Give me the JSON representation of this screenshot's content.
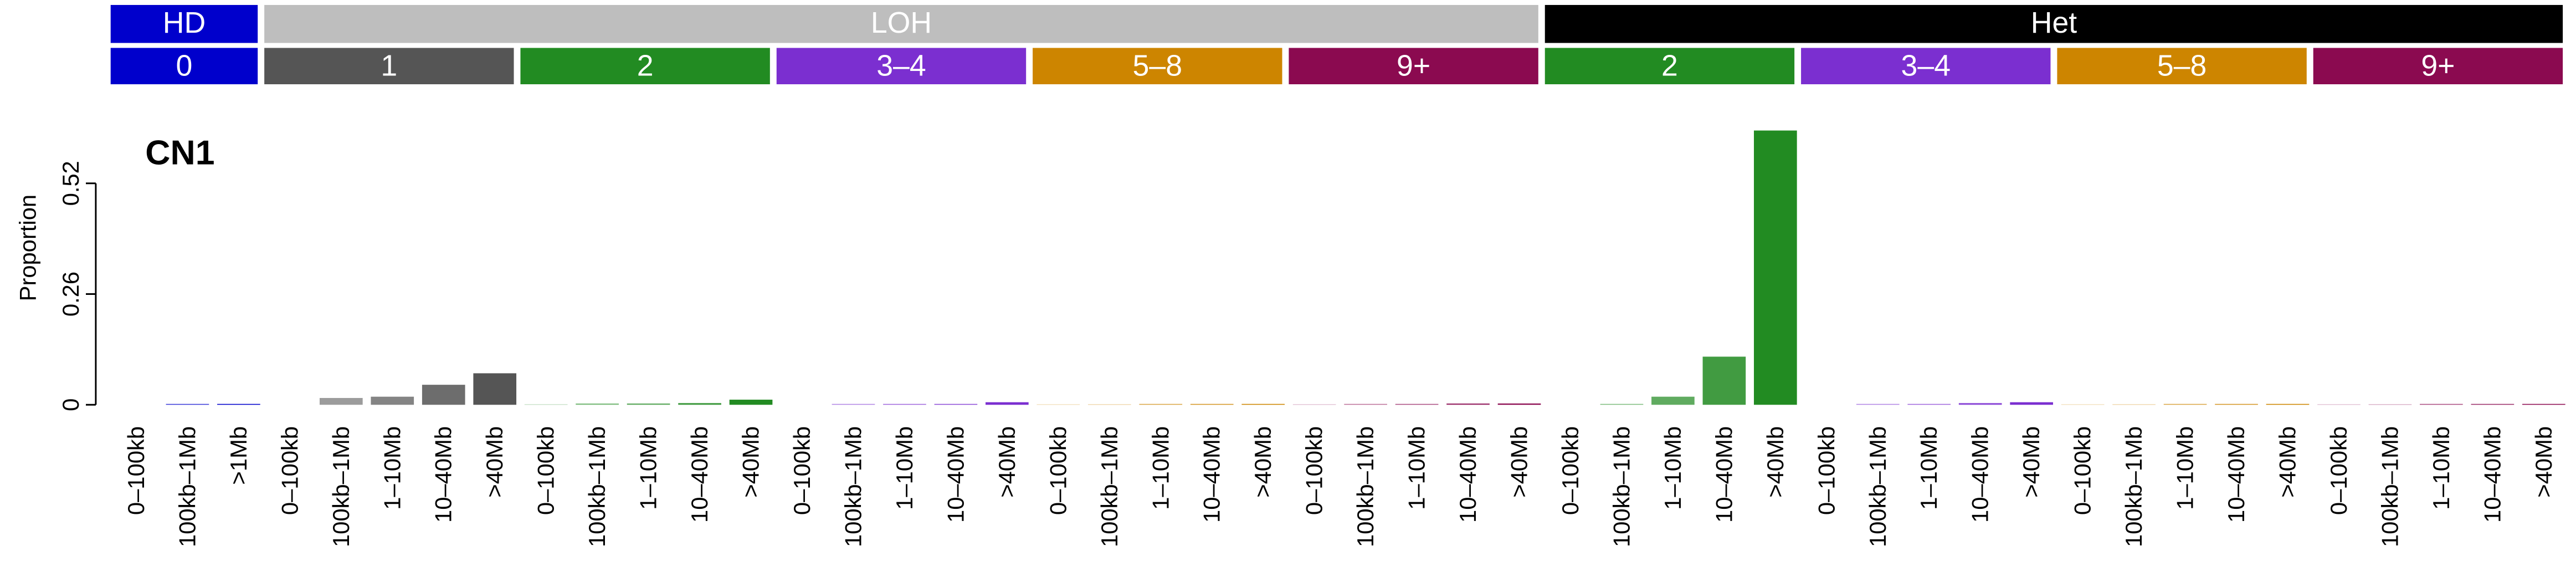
{
  "chart_data": {
    "type": "bar",
    "title": "CN1",
    "y_label": "Proportion",
    "ylim": [
      0,
      0.644
    ],
    "yticks": [
      0,
      0.26,
      0.52
    ],
    "classes": [
      {
        "label": "HD",
        "color": "#0000cc",
        "groups": [
          {
            "label": "0",
            "color": "#0000cc",
            "categories": [
              "0–100kb",
              "100kb–1Mb",
              ">1Mb"
            ],
            "values": [
              0,
              0.002,
              0.002
            ]
          }
        ]
      },
      {
        "label": "LOH",
        "color": "#bebebe",
        "groups": [
          {
            "label": "1",
            "color": "#555555",
            "categories": [
              "0–100kb",
              "100kb–1Mb",
              "1–10Mb",
              "10–40Mb",
              ">40Mb"
            ],
            "values": [
              0,
              0.016,
              0.019,
              0.047,
              0.074
            ]
          },
          {
            "label": "2",
            "color": "#228b22",
            "categories": [
              "0–100kb",
              "100kb–1Mb",
              "1–10Mb",
              "10–40Mb",
              ">40Mb"
            ],
            "values": [
              0.001,
              0.003,
              0.003,
              0.004,
              0.012
            ]
          },
          {
            "label": "3–4",
            "color": "#7b2fd0",
            "categories": [
              "0–100kb",
              "100kb–1Mb",
              "1–10Mb",
              "10–40Mb",
              ">40Mb"
            ],
            "values": [
              0,
              0.002,
              0.002,
              0.002,
              0.006
            ]
          },
          {
            "label": "5–8",
            "color": "#cd8500",
            "categories": [
              "0–100kb",
              "100kb–1Mb",
              "1–10Mb",
              "10–40Mb",
              ">40Mb"
            ],
            "values": [
              0.001,
              0.001,
              0.002,
              0.002,
              0.002
            ]
          },
          {
            "label": "9+",
            "color": "#8b0a50",
            "categories": [
              "0–100kb",
              "100kb–1Mb",
              "1–10Mb",
              "10–40Mb",
              ">40Mb"
            ],
            "values": [
              0.001,
              0.002,
              0.002,
              0.003,
              0.003
            ]
          }
        ]
      },
      {
        "label": "Het",
        "color": "#000000",
        "groups": [
          {
            "label": "2",
            "color": "#228b22",
            "categories": [
              "0–100kb",
              "100kb–1Mb",
              "1–10Mb",
              "10–40Mb",
              ">40Mb"
            ],
            "values": [
              0,
              0.002,
              0.019,
              0.113,
              0.644
            ]
          },
          {
            "label": "3–4",
            "color": "#7b2fd0",
            "categories": [
              "0–100kb",
              "100kb–1Mb",
              "1–10Mb",
              "10–40Mb",
              ">40Mb"
            ],
            "values": [
              0,
              0.002,
              0.002,
              0.004,
              0.006
            ]
          },
          {
            "label": "5–8",
            "color": "#cd8500",
            "categories": [
              "0–100kb",
              "100kb–1Mb",
              "1–10Mb",
              "10–40Mb",
              ">40Mb"
            ],
            "values": [
              0.001,
              0.001,
              0.002,
              0.002,
              0.002
            ]
          },
          {
            "label": "9+",
            "color": "#8b0a50",
            "categories": [
              "0–100kb",
              "100kb–1Mb",
              "1–10Mb",
              "10–40Mb",
              ">40Mb"
            ],
            "values": [
              0.001,
              0.001,
              0.002,
              0.002,
              0.002
            ]
          }
        ]
      }
    ]
  }
}
